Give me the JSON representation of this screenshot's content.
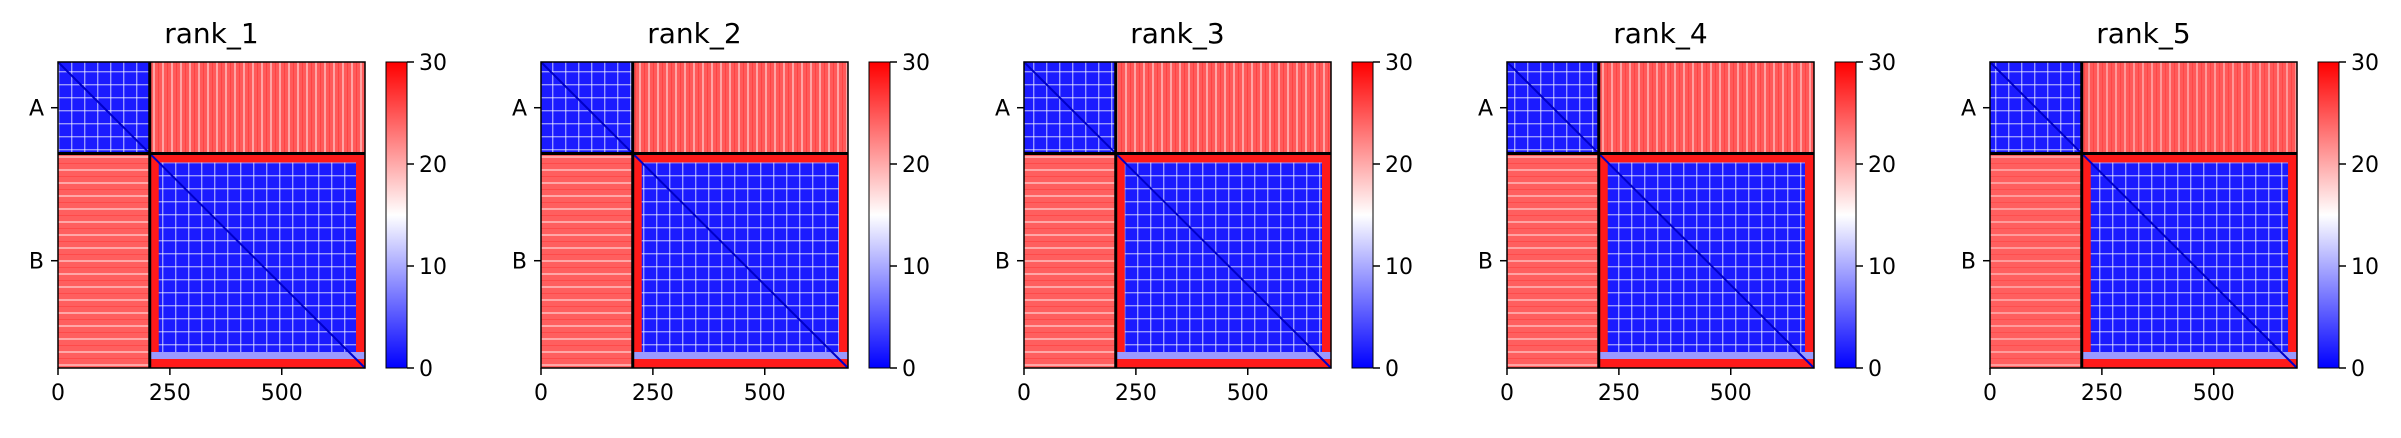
{
  "chart_data": {
    "type": "heatmap",
    "colormap": [
      "#0000ff",
      "#ffffff",
      "#ff0000"
    ],
    "colorbar": {
      "range": [
        0,
        30
      ],
      "ticks": [
        0,
        10,
        20,
        30
      ]
    },
    "matrix_size": 686,
    "chain_boundary": 205,
    "x_ticks": [
      0,
      250,
      500
    ],
    "y_tick_labels": [
      "A",
      "B"
    ],
    "chains": [
      "A",
      "B"
    ],
    "panels": [
      {
        "title": "rank_1"
      },
      {
        "title": "rank_2"
      },
      {
        "title": "rank_3"
      },
      {
        "title": "rank_4"
      },
      {
        "title": "rank_5"
      }
    ]
  }
}
